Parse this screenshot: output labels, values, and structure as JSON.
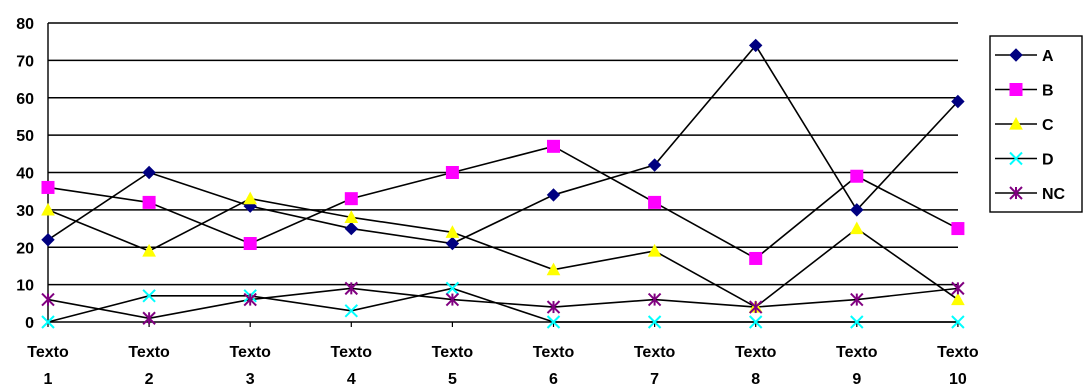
{
  "chart_data": {
    "type": "line",
    "title": "",
    "xlabel": "",
    "ylabel": "",
    "ylim": [
      0,
      80
    ],
    "yticks": [
      0,
      10,
      20,
      30,
      40,
      50,
      60,
      70,
      80
    ],
    "grid": "horizontal",
    "legend_position": "right",
    "categories": [
      [
        "Texto",
        "1"
      ],
      [
        "Texto",
        "2"
      ],
      [
        "Texto",
        "3"
      ],
      [
        "Texto",
        "4"
      ],
      [
        "Texto",
        "5"
      ],
      [
        "Texto",
        "6"
      ],
      [
        "Texto",
        "7"
      ],
      [
        "Texto",
        "8"
      ],
      [
        "Texto",
        "9"
      ],
      [
        "Texto",
        "10"
      ]
    ],
    "series": [
      {
        "name": "A",
        "color": "#000080",
        "marker": "diamond",
        "values": [
          22,
          40,
          31,
          25,
          21,
          34,
          42,
          74,
          30,
          59
        ]
      },
      {
        "name": "B",
        "color": "#FF00FF",
        "marker": "square",
        "values": [
          36,
          32,
          21,
          33,
          40,
          47,
          32,
          17,
          39,
          25
        ]
      },
      {
        "name": "C",
        "color": "#FFFF00",
        "marker": "triangle",
        "values": [
          30,
          19,
          33,
          28,
          24,
          14,
          19,
          4,
          25,
          6
        ]
      },
      {
        "name": "D",
        "color": "#00FFFF",
        "marker": "x",
        "values": [
          0,
          7,
          7,
          3,
          9,
          0,
          0,
          0,
          0,
          0
        ]
      },
      {
        "name": "NC",
        "color": "#800080",
        "marker": "star",
        "values": [
          6,
          1,
          6,
          9,
          6,
          4,
          6,
          4,
          6,
          9
        ]
      }
    ]
  }
}
